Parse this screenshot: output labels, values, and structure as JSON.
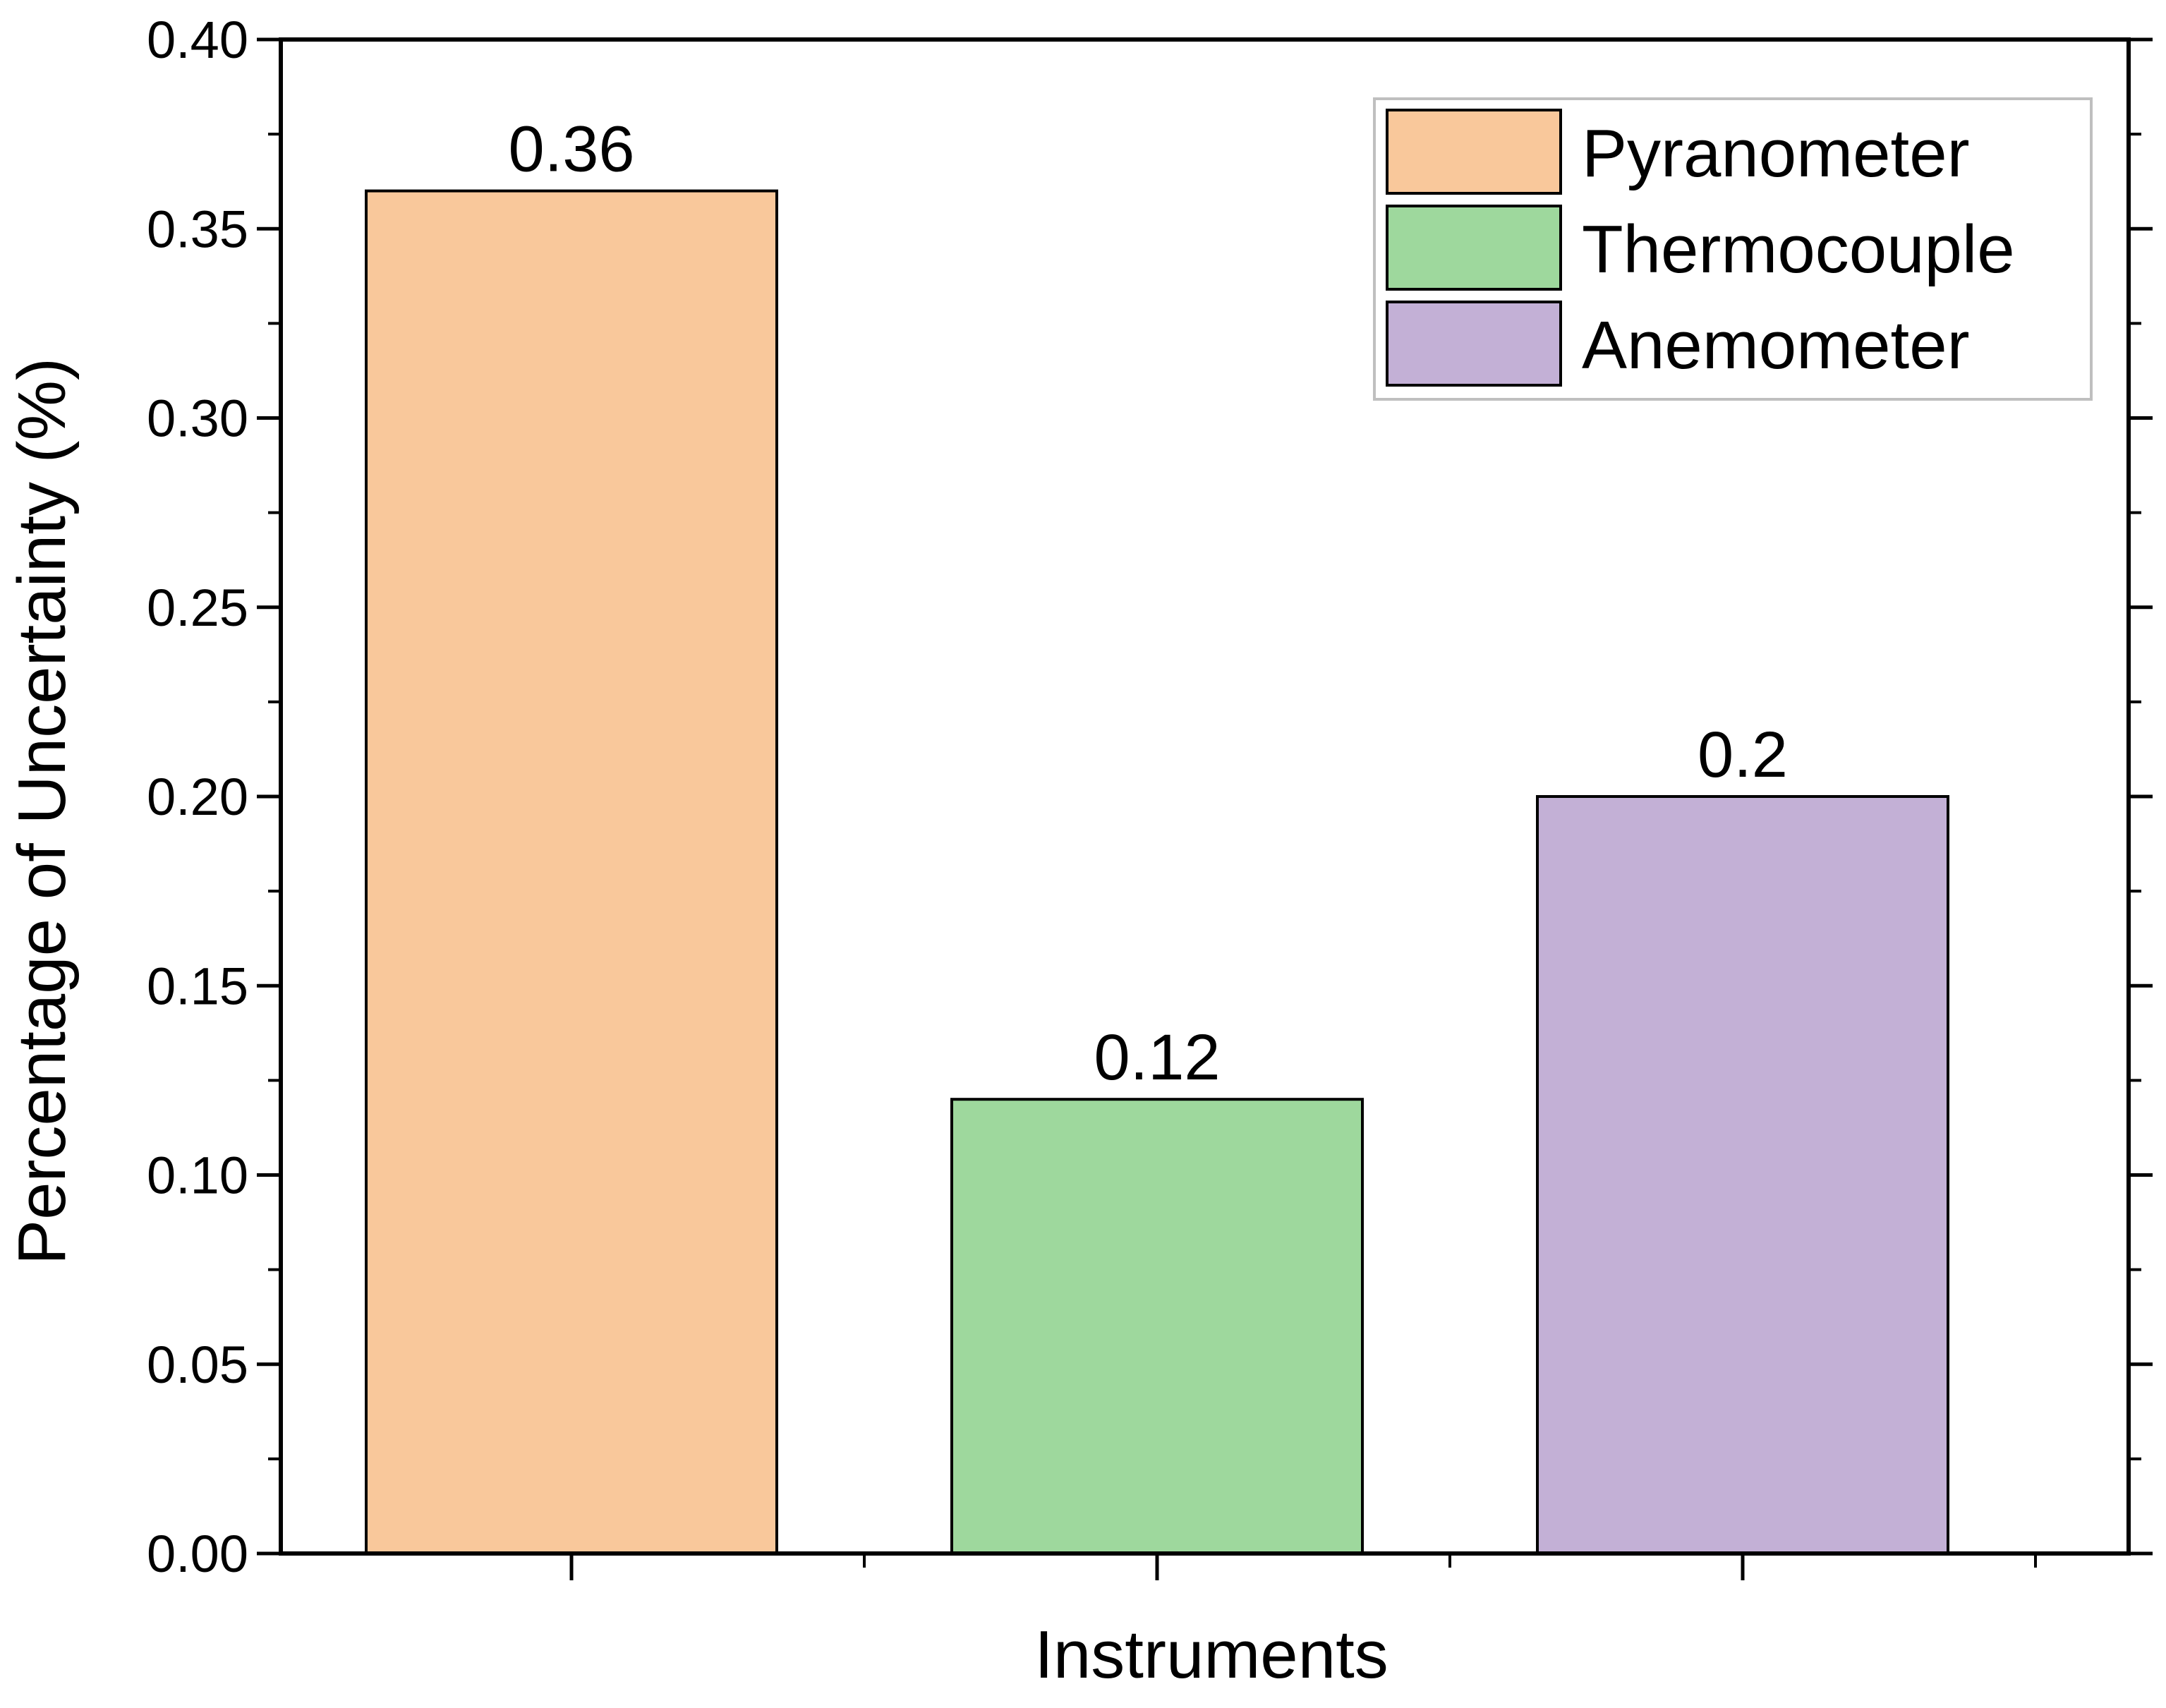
{
  "chart_data": {
    "type": "bar",
    "categories": [
      "Pyranometer",
      "Thermocouple",
      "Anemometer"
    ],
    "values": [
      0.36,
      0.12,
      0.2
    ],
    "value_labels": [
      "0.36",
      "0.12",
      "0.2"
    ],
    "colors": [
      "#F9C89B",
      "#9ED89D",
      "#C3B0D6"
    ],
    "xlabel": "Instruments",
    "ylabel": "Percentage of Uncertainty (%)",
    "ylim": [
      0,
      0.4
    ],
    "yticks": [
      0.0,
      0.05,
      0.1,
      0.15,
      0.2,
      0.25,
      0.3,
      0.35,
      0.4
    ],
    "ytick_labels": [
      "0.00",
      "0.05",
      "0.10",
      "0.15",
      "0.20",
      "0.25",
      "0.30",
      "0.35",
      "0.40"
    ],
    "grid": false,
    "legend": {
      "placement": "top-right",
      "entries": [
        "Pyranometer",
        "Thermocouple",
        "Anemometer"
      ]
    }
  }
}
